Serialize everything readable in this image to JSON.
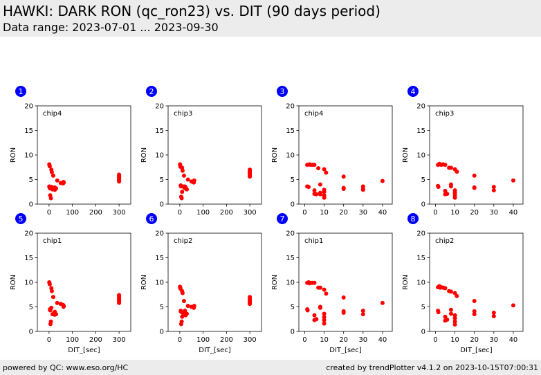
{
  "header": {
    "title": "HAWKI: DARK RON (qc_ron23) vs. DIT (90 days period)",
    "subtitle": "Data range: 2023-07-01 ... 2023-09-30"
  },
  "footer": {
    "left": "powered by QC: www.eso.org/HC",
    "right": "created by trendPlotter v4.1.2 on 2023-10-15T07:00:31"
  },
  "colors": {
    "marker": "#ff0000",
    "badge": "#0000ff",
    "header_bg": "#ececec"
  },
  "chart_data": [
    {
      "type": "scatter",
      "badge": "1",
      "label": "chip4",
      "xlabel": "",
      "ylabel": "RON",
      "xlim": [
        -50,
        350
      ],
      "ylim": [
        0,
        20
      ],
      "xticks": [
        0,
        100,
        200,
        300
      ],
      "yticks": [
        0,
        5,
        10,
        15,
        20
      ],
      "x": [
        1,
        2,
        3,
        1,
        2,
        4,
        5,
        8,
        10,
        10,
        12,
        15,
        18,
        20,
        22,
        24,
        25,
        30,
        35,
        50,
        60,
        62,
        63,
        300,
        300,
        300,
        300,
        300,
        300,
        300,
        300,
        300
      ],
      "y": [
        8.1,
        7.9,
        7.7,
        3.6,
        3.4,
        3.2,
        1.8,
        1.2,
        3.5,
        7.0,
        6.5,
        3.0,
        5.8,
        3.3,
        3.1,
        3.4,
        2.9,
        3.2,
        4.8,
        4.3,
        4.2,
        4.5,
        4.4,
        4.6,
        4.8,
        5.0,
        5.2,
        5.4,
        5.6,
        5.8,
        6.0,
        5.3
      ]
    },
    {
      "type": "scatter",
      "badge": "2",
      "label": "chip3",
      "xlabel": "",
      "ylabel": "RON",
      "xlim": [
        -50,
        350
      ],
      "ylim": [
        0,
        20
      ],
      "xticks": [
        0,
        100,
        200,
        300
      ],
      "yticks": [
        0,
        5,
        10,
        15,
        20
      ],
      "x": [
        1,
        2,
        3,
        4,
        5,
        6,
        8,
        10,
        10,
        12,
        15,
        18,
        20,
        22,
        24,
        25,
        30,
        35,
        50,
        60,
        62,
        300,
        300,
        300,
        300,
        300,
        300,
        300,
        300,
        300
      ],
      "y": [
        8.1,
        7.9,
        7.6,
        3.8,
        3.6,
        1.5,
        1.2,
        2.5,
        7.4,
        6.8,
        3.6,
        5.8,
        3.3,
        3.6,
        3.2,
        3.4,
        3.0,
        5.0,
        4.6,
        4.4,
        4.8,
        5.6,
        5.8,
        6.0,
        6.2,
        6.4,
        6.6,
        6.8,
        7.0,
        6.3
      ]
    },
    {
      "type": "scatter",
      "badge": "3",
      "label": "chip4",
      "xlabel": "",
      "ylabel": "RON",
      "xlim": [
        -3,
        45
      ],
      "ylim": [
        0,
        20
      ],
      "xticks": [
        0,
        10,
        20,
        30,
        40
      ],
      "yticks": [
        0,
        5,
        10,
        15,
        20
      ],
      "x": [
        1.3,
        1.3,
        2,
        2.5,
        3,
        4,
        5,
        5,
        5,
        6,
        7,
        8,
        8,
        8,
        10,
        10,
        10,
        10,
        10,
        11,
        20,
        20,
        20,
        30,
        30,
        30,
        40
      ],
      "y": [
        8.0,
        3.6,
        3.5,
        8.1,
        8.0,
        8.0,
        8.0,
        2.8,
        2.1,
        2.0,
        7.3,
        4.0,
        2.3,
        2.0,
        7.1,
        2.9,
        2.5,
        1.8,
        1.3,
        6.4,
        5.6,
        3.3,
        3.1,
        3.6,
        3.1,
        2.9,
        4.7
      ]
    },
    {
      "type": "scatter",
      "badge": "4",
      "label": "chip3",
      "xlabel": "",
      "ylabel": "RON",
      "xlim": [
        -3,
        45
      ],
      "ylim": [
        0,
        20
      ],
      "xticks": [
        0,
        10,
        20,
        30,
        40
      ],
      "yticks": [
        0,
        5,
        10,
        15,
        20
      ],
      "x": [
        1.3,
        1.3,
        1.5,
        2,
        2.5,
        3,
        4,
        5,
        5,
        5,
        6,
        7,
        8,
        8,
        8,
        10,
        10,
        10,
        10,
        10,
        11,
        20,
        20,
        20,
        30,
        30,
        40
      ],
      "y": [
        8.0,
        3.7,
        3.5,
        8.2,
        8.1,
        8.0,
        8.1,
        8.0,
        2.7,
        2.0,
        2.1,
        7.4,
        7.4,
        4.0,
        3.6,
        7.1,
        2.8,
        2.3,
        1.8,
        1.3,
        6.6,
        5.8,
        3.4,
        3.3,
        3.5,
        2.8,
        4.8
      ]
    },
    {
      "type": "scatter",
      "badge": "5",
      "label": "chip1",
      "xlabel": "DIT_[sec]",
      "ylabel": "RON",
      "xlim": [
        -50,
        350
      ],
      "ylim": [
        0,
        20
      ],
      "xticks": [
        0,
        100,
        200,
        300
      ],
      "yticks": [
        0,
        5,
        10,
        15,
        20
      ],
      "x": [
        1,
        2,
        3,
        4,
        5,
        6,
        8,
        10,
        10,
        12,
        15,
        18,
        20,
        22,
        24,
        25,
        30,
        35,
        50,
        60,
        62,
        63,
        300,
        300,
        300,
        300,
        300,
        300,
        300,
        300,
        300,
        300
      ],
      "y": [
        10.0,
        9.8,
        9.6,
        4.5,
        4.3,
        1.5,
        2.0,
        4.8,
        8.8,
        8.2,
        3.5,
        7.0,
        3.6,
        3.8,
        3.4,
        4.0,
        3.5,
        5.8,
        5.6,
        5.4,
        5.0,
        5.2,
        5.8,
        6.0,
        6.2,
        6.4,
        6.6,
        6.8,
        7.0,
        7.2,
        7.4,
        6.3
      ]
    },
    {
      "type": "scatter",
      "badge": "6",
      "label": "chip2",
      "xlabel": "DIT_[sec]",
      "ylabel": "RON",
      "xlim": [
        -50,
        350
      ],
      "ylim": [
        0,
        20
      ],
      "xticks": [
        0,
        100,
        200,
        300
      ],
      "yticks": [
        0,
        5,
        10,
        15,
        20
      ],
      "x": [
        1,
        2,
        3,
        4,
        5,
        6,
        8,
        10,
        10,
        12,
        15,
        18,
        20,
        22,
        24,
        25,
        30,
        35,
        50,
        60,
        62,
        300,
        300,
        300,
        300,
        300,
        300,
        300,
        300
      ],
      "y": [
        9.1,
        8.9,
        8.7,
        4.2,
        4.0,
        1.5,
        2.0,
        3.0,
        8.2,
        7.8,
        3.6,
        6.2,
        3.8,
        4.2,
        3.5,
        3.3,
        3.6,
        5.2,
        5.0,
        4.8,
        5.2,
        5.6,
        5.8,
        6.0,
        6.2,
        6.4,
        6.6,
        7.0,
        6.1
      ]
    },
    {
      "type": "scatter",
      "badge": "7",
      "label": "chip1",
      "xlabel": "DIT_[sec]",
      "ylabel": "RON",
      "xlim": [
        -3,
        45
      ],
      "ylim": [
        0,
        20
      ],
      "xticks": [
        0,
        10,
        20,
        30,
        40
      ],
      "yticks": [
        0,
        5,
        10,
        15,
        20
      ],
      "x": [
        1.3,
        1.3,
        1.5,
        2,
        2.5,
        3,
        4,
        5,
        5,
        5,
        6,
        7,
        8,
        8,
        8,
        10,
        10,
        10,
        10,
        10,
        11,
        20,
        20,
        20,
        30,
        30,
        40
      ],
      "y": [
        9.9,
        4.5,
        4.3,
        10.0,
        9.8,
        9.9,
        9.9,
        9.9,
        3.3,
        2.3,
        2.5,
        8.9,
        8.9,
        5.0,
        4.8,
        8.5,
        3.6,
        2.9,
        2.3,
        1.6,
        7.7,
        6.9,
        4.1,
        3.8,
        4.2,
        3.5,
        5.8
      ]
    },
    {
      "type": "scatter",
      "badge": "8",
      "label": "chip2",
      "xlabel": "DIT_[sec]",
      "ylabel": "RON",
      "xlim": [
        -3,
        45
      ],
      "ylim": [
        0,
        20
      ],
      "xticks": [
        0,
        10,
        20,
        30,
        40
      ],
      "yticks": [
        0,
        5,
        10,
        15,
        20
      ],
      "x": [
        1.3,
        1.3,
        1.5,
        2,
        2.5,
        3,
        4,
        5,
        5,
        5,
        6,
        7,
        8,
        8,
        8,
        10,
        10,
        10,
        10,
        10,
        11,
        20,
        20,
        20,
        30,
        30,
        40
      ],
      "y": [
        9.0,
        4.2,
        3.9,
        9.2,
        8.9,
        9.0,
        8.9,
        8.8,
        3.0,
        2.2,
        2.4,
        8.2,
        8.1,
        4.4,
        3.6,
        7.8,
        3.3,
        2.7,
        2.0,
        1.4,
        7.2,
        6.2,
        4.1,
        3.5,
        3.8,
        3.1,
        5.3
      ]
    }
  ]
}
